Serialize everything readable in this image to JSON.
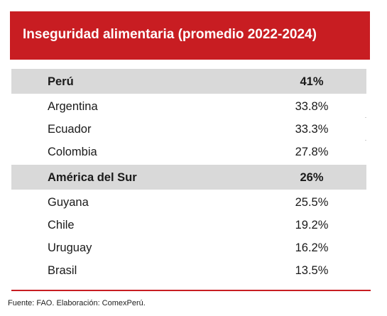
{
  "title": "Inseguridad alimentaria (promedio 2022-2024)",
  "rows": [
    {
      "name": "Perú",
      "value": "41%",
      "highlight": true
    },
    {
      "name": "Argentina",
      "value": "33.8%",
      "highlight": false
    },
    {
      "name": "Ecuador",
      "value": "33.3%",
      "highlight": false
    },
    {
      "name": "Colombia",
      "value": "27.8%",
      "highlight": false
    },
    {
      "name": "América del Sur",
      "value": "26%",
      "highlight": true
    },
    {
      "name": "Guyana",
      "value": "25.5%",
      "highlight": false
    },
    {
      "name": "Chile",
      "value": "19.2%",
      "highlight": false
    },
    {
      "name": "Uruguay",
      "value": "16.2%",
      "highlight": false
    },
    {
      "name": "Brasil",
      "value": "13.5%",
      "highlight": false
    }
  ],
  "source": "Fuente: FAO. Elaboración: ComexPerú.",
  "colors": {
    "header": "#c81d22",
    "highlight_row": "#d9d9d9",
    "rule": "#c81d22"
  }
}
